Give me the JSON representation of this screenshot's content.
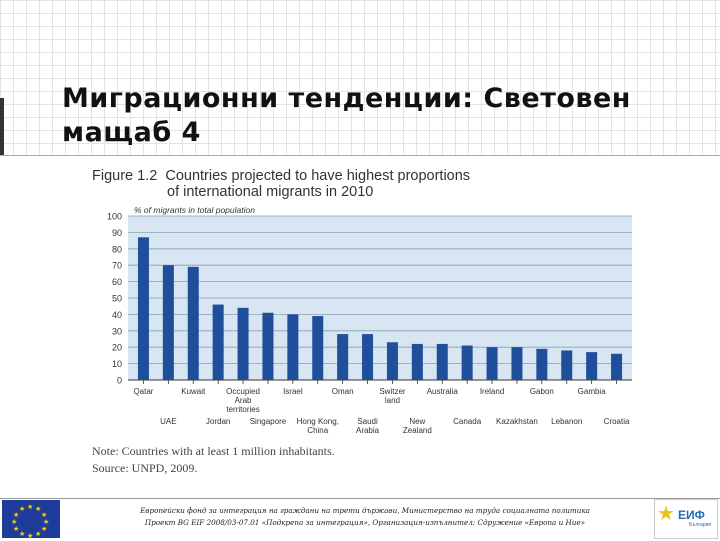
{
  "slide": {
    "title_line1": "Миграционни тенденции: Световен",
    "title_line2": "мащаб 4"
  },
  "figure": {
    "title_line1_prefix": "Figure 1.2",
    "title_line1_rest": "Countries projected to have highest proportions",
    "title_line2": "of international migrants in 2010",
    "note": "Note: Countries with at least 1 million inhabitants.",
    "source": "Source: UNPD, 2009."
  },
  "chart_data": {
    "type": "bar",
    "ylabel": "% of migrants in total population",
    "ylim": [
      0,
      100
    ],
    "yticks": [
      0,
      10,
      20,
      30,
      40,
      50,
      60,
      70,
      80,
      90,
      100
    ],
    "grid": true,
    "categories": [
      {
        "label": "Qatar",
        "row": "top"
      },
      {
        "label": "UAE",
        "row": "bottom"
      },
      {
        "label": "Kuwait",
        "row": "top"
      },
      {
        "label": "Jordan",
        "row": "bottom"
      },
      {
        "label": "Occupied Arab territories",
        "lines": [
          "Occupied",
          "Arab",
          "territories"
        ],
        "row": "top"
      },
      {
        "label": "Singapore",
        "row": "bottom"
      },
      {
        "label": "Israel",
        "row": "top"
      },
      {
        "label": "Hong Kong, China",
        "lines": [
          "Hong Kong,",
          "China"
        ],
        "row": "bottom"
      },
      {
        "label": "Oman",
        "row": "top"
      },
      {
        "label": "Saudi Arabia",
        "lines": [
          "Saudi",
          "Arabia"
        ],
        "row": "bottom"
      },
      {
        "label": "Switzerland",
        "lines": [
          "Switzer",
          "land"
        ],
        "row": "top"
      },
      {
        "label": "New Zealand",
        "lines": [
          "New",
          "Zealand"
        ],
        "row": "bottom"
      },
      {
        "label": "Australia",
        "row": "top"
      },
      {
        "label": "Canada",
        "row": "bottom"
      },
      {
        "label": "Ireland",
        "row": "top"
      },
      {
        "label": "Kazakhstan",
        "row": "bottom"
      },
      {
        "label": "Gabon",
        "row": "top"
      },
      {
        "label": "Lebanon",
        "row": "bottom"
      },
      {
        "label": "Gambia",
        "row": "top"
      },
      {
        "label": "Croatia",
        "row": "bottom"
      }
    ],
    "values": [
      87,
      70,
      69,
      46,
      44,
      41,
      40,
      39,
      28,
      28,
      23,
      22,
      22,
      21,
      20,
      20,
      19,
      18,
      17,
      16
    ],
    "bar_color": "#1f4e9a",
    "plot_bg": "#d7e6f2"
  },
  "footer": {
    "line1": "Европейски фонд за интеграция на граждани на трети държави, Министерство на труда социалната политика",
    "line2": "Проект BG EIF 2008/03-07.01 «Подкрепа за интеграция», Организация-изпълнител: Сдружение «Европа и Ние»",
    "logo_text": "ЕИФ",
    "logo_sub": "България"
  }
}
